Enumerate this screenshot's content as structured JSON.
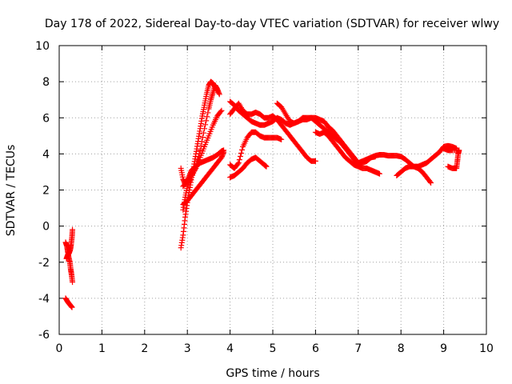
{
  "chart_data": {
    "type": "scatter",
    "title": "Day 178 of 2022, Sidereal Day-to-day VTEC variation (SDTVAR) for receiver wlwy",
    "xlabel": "GPS time / hours",
    "ylabel": "SDTVAR / TECUs",
    "xlim": [
      0,
      10
    ],
    "ylim": [
      -6,
      10
    ],
    "x_ticks": [
      0,
      1,
      2,
      3,
      4,
      5,
      6,
      7,
      8,
      9,
      10
    ],
    "y_ticks": [
      -6,
      -4,
      -2,
      0,
      2,
      4,
      6,
      8,
      10
    ],
    "grid": true,
    "marker": "+",
    "color": "#ff0000",
    "series": [
      {
        "name": "arc-early-1",
        "points": [
          [
            0.15,
            -0.9
          ],
          [
            0.18,
            -1.1
          ],
          [
            0.2,
            -1.4
          ],
          [
            0.22,
            -1.7
          ],
          [
            0.25,
            -2.0
          ],
          [
            0.27,
            -2.4
          ],
          [
            0.29,
            -2.7
          ],
          [
            0.31,
            -3.1
          ]
        ]
      },
      {
        "name": "arc-early-2",
        "points": [
          [
            0.17,
            -1.8
          ],
          [
            0.2,
            -1.6
          ],
          [
            0.23,
            -1.5
          ],
          [
            0.26,
            -1.3
          ],
          [
            0.28,
            -1.0
          ],
          [
            0.3,
            -0.6
          ],
          [
            0.31,
            -0.2
          ]
        ]
      },
      {
        "name": "arc-early-3",
        "points": [
          [
            0.15,
            -4.0
          ],
          [
            0.2,
            -4.2
          ],
          [
            0.25,
            -4.35
          ],
          [
            0.3,
            -4.5
          ]
        ]
      },
      {
        "name": "arc-a",
        "points": [
          [
            2.85,
            -1.2
          ],
          [
            2.9,
            -0.5
          ],
          [
            2.95,
            0.5
          ],
          [
            3.0,
            1.3
          ],
          [
            3.05,
            2.0
          ],
          [
            3.1,
            2.7
          ],
          [
            3.15,
            3.3
          ],
          [
            3.2,
            4.0
          ],
          [
            3.25,
            4.7
          ],
          [
            3.3,
            5.4
          ],
          [
            3.35,
            6.1
          ],
          [
            3.4,
            6.7
          ],
          [
            3.45,
            7.3
          ],
          [
            3.5,
            7.8
          ],
          [
            3.55,
            8.0
          ],
          [
            3.6,
            7.9
          ],
          [
            3.65,
            7.7
          ],
          [
            3.7,
            7.5
          ]
        ]
      },
      {
        "name": "arc-b",
        "points": [
          [
            2.9,
            0.9
          ],
          [
            2.95,
            1.6
          ],
          [
            3.0,
            2.2
          ],
          [
            3.1,
            2.7
          ],
          [
            3.2,
            3.3
          ],
          [
            3.3,
            4.2
          ],
          [
            3.4,
            5.4
          ],
          [
            3.5,
            6.5
          ],
          [
            3.55,
            7.0
          ],
          [
            3.6,
            7.4
          ],
          [
            3.65,
            7.8
          ],
          [
            3.7,
            7.6
          ],
          [
            3.75,
            7.3
          ]
        ]
      },
      {
        "name": "arc-c",
        "points": [
          [
            2.85,
            3.2
          ],
          [
            2.9,
            2.6
          ],
          [
            2.95,
            2.3
          ],
          [
            3.0,
            2.5
          ],
          [
            3.05,
            2.8
          ],
          [
            3.1,
            3.1
          ],
          [
            3.2,
            3.3
          ],
          [
            3.3,
            3.5
          ],
          [
            3.4,
            3.6
          ],
          [
            3.5,
            3.7
          ],
          [
            3.6,
            3.8
          ],
          [
            3.7,
            3.95
          ],
          [
            3.8,
            4.15
          ],
          [
            3.85,
            4.2
          ]
        ]
      },
      {
        "name": "arc-d",
        "points": [
          [
            2.9,
            1.2
          ],
          [
            3.0,
            1.4
          ],
          [
            3.1,
            1.7
          ],
          [
            3.2,
            2.0
          ],
          [
            3.3,
            2.3
          ],
          [
            3.4,
            2.6
          ],
          [
            3.5,
            2.9
          ],
          [
            3.6,
            3.2
          ],
          [
            3.7,
            3.5
          ],
          [
            3.8,
            3.8
          ],
          [
            3.85,
            4.1
          ]
        ]
      },
      {
        "name": "arc-e",
        "points": [
          [
            2.9,
            2.2
          ],
          [
            3.0,
            2.5
          ],
          [
            3.1,
            2.8
          ],
          [
            3.2,
            3.2
          ],
          [
            3.3,
            3.8
          ],
          [
            3.4,
            4.4
          ],
          [
            3.5,
            5.0
          ],
          [
            3.6,
            5.6
          ],
          [
            3.7,
            6.1
          ],
          [
            3.8,
            6.4
          ]
        ]
      },
      {
        "name": "arc-f",
        "points": [
          [
            4.0,
            2.7
          ],
          [
            4.1,
            2.8
          ],
          [
            4.2,
            3.0
          ],
          [
            4.3,
            3.2
          ],
          [
            4.4,
            3.5
          ],
          [
            4.5,
            3.7
          ],
          [
            4.6,
            3.8
          ],
          [
            4.7,
            3.6
          ],
          [
            4.8,
            3.4
          ],
          [
            4.85,
            3.3
          ]
        ]
      },
      {
        "name": "arc-g",
        "points": [
          [
            4.0,
            3.4
          ],
          [
            4.1,
            3.2
          ],
          [
            4.2,
            3.5
          ],
          [
            4.3,
            4.4
          ],
          [
            4.4,
            4.9
          ],
          [
            4.5,
            5.2
          ],
          [
            4.6,
            5.2
          ],
          [
            4.7,
            5.0
          ],
          [
            4.8,
            4.9
          ],
          [
            4.9,
            4.9
          ],
          [
            5.0,
            4.9
          ],
          [
            5.1,
            4.9
          ],
          [
            5.2,
            4.8
          ]
        ]
      },
      {
        "name": "arc-h",
        "points": [
          [
            4.0,
            6.9
          ],
          [
            4.1,
            6.7
          ],
          [
            4.2,
            6.4
          ],
          [
            4.3,
            6.2
          ],
          [
            4.4,
            6.0
          ],
          [
            4.5,
            5.8
          ],
          [
            4.6,
            5.7
          ],
          [
            4.7,
            5.6
          ],
          [
            4.8,
            5.6
          ],
          [
            4.9,
            5.7
          ],
          [
            5.0,
            5.8
          ],
          [
            5.1,
            6.0
          ],
          [
            5.2,
            5.9
          ],
          [
            5.3,
            5.7
          ],
          [
            5.4,
            5.6
          ],
          [
            5.5,
            5.7
          ],
          [
            5.6,
            5.8
          ],
          [
            5.7,
            5.9
          ],
          [
            5.8,
            5.9
          ],
          [
            5.9,
            6.0
          ],
          [
            6.0,
            5.8
          ],
          [
            6.1,
            5.6
          ],
          [
            6.2,
            5.4
          ],
          [
            6.3,
            5.2
          ],
          [
            6.4,
            5.0
          ],
          [
            6.5,
            4.8
          ],
          [
            6.6,
            4.6
          ],
          [
            6.7,
            4.3
          ],
          [
            6.8,
            4.0
          ],
          [
            6.9,
            3.8
          ],
          [
            7.0,
            3.5
          ]
        ]
      },
      {
        "name": "arc-i",
        "points": [
          [
            4.0,
            6.2
          ],
          [
            4.1,
            6.5
          ],
          [
            4.2,
            6.8
          ],
          [
            4.3,
            6.4
          ],
          [
            4.4,
            6.2
          ],
          [
            4.5,
            6.2
          ],
          [
            4.6,
            6.3
          ],
          [
            4.7,
            6.2
          ],
          [
            4.8,
            6.0
          ],
          [
            4.9,
            6.0
          ],
          [
            5.0,
            6.1
          ],
          [
            5.1,
            5.9
          ],
          [
            5.2,
            5.6
          ],
          [
            5.3,
            5.3
          ],
          [
            5.4,
            5.0
          ],
          [
            5.5,
            4.7
          ],
          [
            5.6,
            4.4
          ],
          [
            5.7,
            4.1
          ],
          [
            5.8,
            3.8
          ],
          [
            5.9,
            3.6
          ],
          [
            6.0,
            3.6
          ]
        ]
      },
      {
        "name": "arc-j",
        "points": [
          [
            5.1,
            6.8
          ],
          [
            5.2,
            6.6
          ],
          [
            5.3,
            6.2
          ],
          [
            5.4,
            5.8
          ],
          [
            5.5,
            5.7
          ],
          [
            5.6,
            5.8
          ],
          [
            5.7,
            6.0
          ],
          [
            5.8,
            6.0
          ],
          [
            5.9,
            6.0
          ],
          [
            6.0,
            6.0
          ],
          [
            6.1,
            5.9
          ],
          [
            6.2,
            5.8
          ],
          [
            6.3,
            5.5
          ],
          [
            6.4,
            5.3
          ],
          [
            6.5,
            5.0
          ],
          [
            6.6,
            4.7
          ],
          [
            6.7,
            4.4
          ],
          [
            6.8,
            4.1
          ],
          [
            6.9,
            3.8
          ],
          [
            7.0,
            3.5
          ],
          [
            7.1,
            3.5
          ],
          [
            7.2,
            3.6
          ],
          [
            7.3,
            3.8
          ],
          [
            7.4,
            3.9
          ],
          [
            7.5,
            3.95
          ],
          [
            7.6,
            3.95
          ],
          [
            7.7,
            3.9
          ],
          [
            7.8,
            3.9
          ],
          [
            7.9,
            3.9
          ],
          [
            8.0,
            3.85
          ],
          [
            8.1,
            3.7
          ],
          [
            8.2,
            3.5
          ],
          [
            8.3,
            3.3
          ],
          [
            8.4,
            3.3
          ],
          [
            8.5,
            3.4
          ],
          [
            8.6,
            3.5
          ],
          [
            8.7,
            3.7
          ],
          [
            8.8,
            3.9
          ],
          [
            8.9,
            4.1
          ],
          [
            9.0,
            4.4
          ],
          [
            9.1,
            4.45
          ],
          [
            9.2,
            4.4
          ],
          [
            9.3,
            4.3
          ]
        ]
      },
      {
        "name": "arc-k",
        "points": [
          [
            6.0,
            5.2
          ],
          [
            6.1,
            5.1
          ],
          [
            6.2,
            5.2
          ],
          [
            6.3,
            5.0
          ],
          [
            6.4,
            4.7
          ],
          [
            6.5,
            4.4
          ],
          [
            6.6,
            4.1
          ],
          [
            6.7,
            3.8
          ],
          [
            6.8,
            3.6
          ],
          [
            6.9,
            3.4
          ],
          [
            7.0,
            3.3
          ],
          [
            7.1,
            3.2
          ],
          [
            7.2,
            3.2
          ],
          [
            7.3,
            3.1
          ],
          [
            7.4,
            3.0
          ],
          [
            7.5,
            2.9
          ]
        ]
      },
      {
        "name": "arc-l",
        "points": [
          [
            6.8,
            4.0
          ],
          [
            6.9,
            3.7
          ],
          [
            7.0,
            3.5
          ],
          [
            7.1,
            3.6
          ],
          [
            7.2,
            3.7
          ],
          [
            7.3,
            3.8
          ],
          [
            7.4,
            3.85
          ]
        ]
      },
      {
        "name": "arc-m",
        "points": [
          [
            7.9,
            2.8
          ],
          [
            8.0,
            3.0
          ],
          [
            8.1,
            3.2
          ],
          [
            8.2,
            3.3
          ],
          [
            8.3,
            3.3
          ],
          [
            8.4,
            3.2
          ],
          [
            8.5,
            3.0
          ],
          [
            8.6,
            2.7
          ],
          [
            8.7,
            2.4
          ]
        ]
      },
      {
        "name": "arc-n",
        "points": [
          [
            9.1,
            3.3
          ],
          [
            9.2,
            3.2
          ],
          [
            9.3,
            3.2
          ],
          [
            9.32,
            3.6
          ],
          [
            9.34,
            4.0
          ],
          [
            9.36,
            4.2
          ],
          [
            9.2,
            4.2
          ],
          [
            9.1,
            4.2
          ],
          [
            9.0,
            4.3
          ]
        ]
      }
    ]
  }
}
